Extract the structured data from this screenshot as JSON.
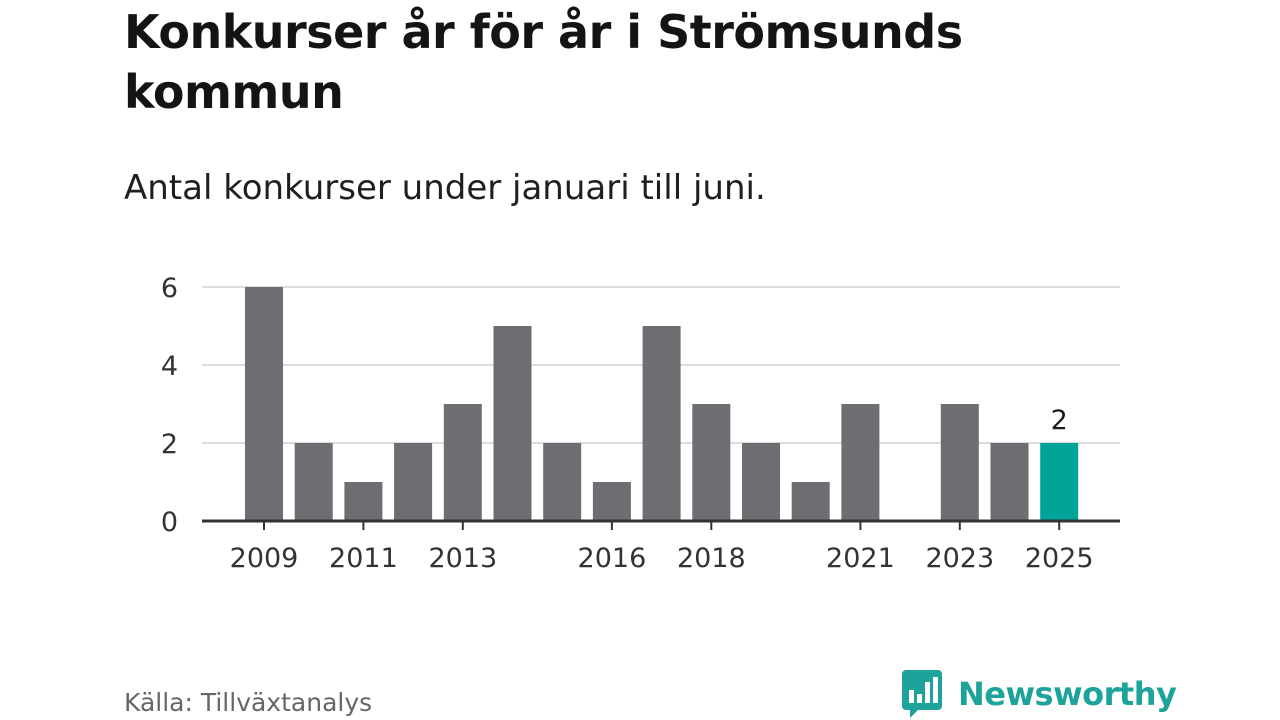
{
  "header": {
    "title": "Konkurser år för år i Strömsunds kommun",
    "subtitle": "Antal konkurser under januari till juni."
  },
  "footer": {
    "source": "Källa: Tillväxtanalys",
    "brand": "Newsworthy"
  },
  "colors": {
    "bar": "#6e6d72",
    "highlight": "#00a398",
    "grid": "#dcdcdc",
    "axis": "#333333",
    "brand": "#1ea39a"
  },
  "icons": {
    "logo": "bar-chart-speech-bubble-icon"
  },
  "chart_data": {
    "type": "bar",
    "title": "Konkurser år för år i Strömsunds kommun",
    "subtitle": "Antal konkurser under januari till juni.",
    "categories": [
      "2009",
      "2010",
      "2011",
      "2012",
      "2013",
      "2014",
      "2015",
      "2016",
      "2017",
      "2018",
      "2019",
      "2020",
      "2021",
      "2022",
      "2023",
      "2024",
      "2025"
    ],
    "values": [
      6,
      2,
      1,
      2,
      3,
      5,
      2,
      1,
      5,
      3,
      2,
      1,
      3,
      0,
      3,
      2,
      2
    ],
    "x_tick_labels": [
      "2009",
      "2011",
      "2013",
      "2016",
      "2018",
      "2021",
      "2023",
      "2025"
    ],
    "y_ticks": [
      0,
      2,
      4,
      6
    ],
    "ylim": [
      0,
      6
    ],
    "xlabel": "",
    "ylabel": "",
    "grid": true,
    "highlight_category": "2025",
    "data_labels": [
      {
        "category": "2025",
        "text": "2"
      }
    ],
    "source": "Källa: Tillväxtanalys"
  }
}
